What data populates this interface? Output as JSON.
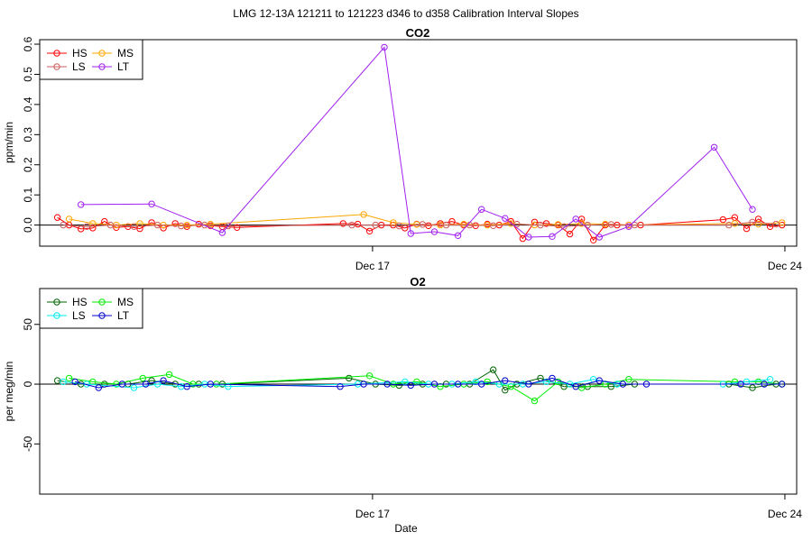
{
  "figure": {
    "title": "LMG   12-13A    121211 to 121223    d346 to d358   Calibration Interval Slopes",
    "xlabel": "Date"
  },
  "chart_data": [
    {
      "type": "scatter",
      "title": "CO2",
      "ylabel": "ppm/min",
      "xlabel": "",
      "x_unit": "day of December 2012",
      "xlim": [
        11.35,
        24.2
      ],
      "ylim": [
        -0.07,
        0.615
      ],
      "x_ticks": [
        {
          "x": 17,
          "label": "Dec 17"
        },
        {
          "x": 24,
          "label": "Dec 24"
        }
      ],
      "y_ticks": [
        0.0,
        0.1,
        0.2,
        0.3,
        0.4,
        0.5,
        0.6
      ],
      "y_tick_labels": [
        "0.0",
        "0.1",
        "0.2",
        "0.3",
        "0.4",
        "0.5",
        "0.6"
      ],
      "hline": 0,
      "grid": false,
      "legend": {
        "placement": "top-left",
        "columns": 2
      },
      "series": [
        {
          "name": "HS",
          "color": "#ff0000",
          "x": [
            11.65,
            11.85,
            12.05,
            12.25,
            12.45,
            12.65,
            12.85,
            13.05,
            13.25,
            13.45,
            13.65,
            13.85,
            14.05,
            14.25,
            14.45,
            14.7,
            16.5,
            16.75,
            16.95,
            17.15,
            17.35,
            17.55,
            17.75,
            17.95,
            18.15,
            18.35,
            18.55,
            18.75,
            18.95,
            19.15,
            19.35,
            19.55,
            19.75,
            19.95,
            20.15,
            20.35,
            20.55,
            20.75,
            20.95,
            21.15,
            21.35,
            21.55,
            22.95,
            23.15,
            23.35,
            23.55,
            23.75,
            23.95
          ],
          "y": [
            0.025,
            0.0,
            -0.013,
            -0.01,
            0.012,
            -0.008,
            -0.005,
            -0.012,
            0.008,
            -0.01,
            0.005,
            -0.005,
            0.003,
            -0.002,
            -0.005,
            -0.008,
            0.005,
            0.003,
            -0.02,
            0.0,
            0.0,
            -0.01,
            0.003,
            -0.002,
            0.005,
            0.012,
            0.0,
            -0.002,
            0.003,
            0.0,
            0.012,
            -0.045,
            0.01,
            0.005,
            0.0,
            -0.03,
            0.02,
            -0.05,
            0.0,
            0.0,
            0.0,
            0.0,
            0.018,
            0.025,
            -0.012,
            0.02,
            -0.005,
            0.0
          ]
        },
        {
          "name": "MS",
          "color": "#ffa500",
          "x": [
            11.85,
            12.25,
            12.65,
            13.05,
            13.45,
            13.85,
            14.25,
            16.85,
            17.35,
            17.75,
            18.15,
            18.55,
            18.95,
            19.35,
            19.75,
            20.15,
            20.55,
            20.95,
            21.35,
            23.15,
            23.55,
            23.95
          ],
          "y": [
            0.02,
            0.005,
            0.0,
            0.005,
            0.0,
            0.0,
            0.003,
            0.035,
            0.008,
            0.002,
            0.0,
            0.003,
            0.0,
            0.005,
            0.0,
            0.002,
            0.005,
            0.003,
            0.0,
            0.005,
            0.003,
            0.008
          ]
        },
        {
          "name": "LS",
          "color": "#cd5c5c",
          "x": [
            11.75,
            12.15,
            12.55,
            12.95,
            13.35,
            13.75,
            14.15,
            14.55,
            16.65,
            17.05,
            17.45,
            17.85,
            18.25,
            18.65,
            19.05,
            19.45,
            19.85,
            20.25,
            20.65,
            21.05,
            21.45,
            23.05,
            23.45,
            23.85
          ],
          "y": [
            0.0,
            -0.005,
            0.0,
            -0.005,
            0.0,
            -0.003,
            0.0,
            -0.003,
            0.0,
            0.0,
            -0.003,
            0.002,
            0.0,
            0.0,
            -0.002,
            0.003,
            0.0,
            -0.005,
            0.0,
            0.002,
            0.0,
            0.0,
            0.01,
            0.003
          ]
        },
        {
          "name": "LT",
          "color": "#a020f0",
          "x": [
            12.05,
            13.25,
            14.45,
            17.2,
            17.65,
            18.05,
            18.45,
            18.85,
            19.25,
            19.65,
            20.05,
            20.45,
            20.85,
            21.35,
            22.8,
            23.45
          ],
          "y": [
            0.068,
            0.07,
            -0.025,
            0.59,
            -0.028,
            -0.022,
            -0.035,
            0.052,
            0.022,
            -0.04,
            -0.038,
            0.02,
            -0.04,
            -0.005,
            0.258,
            0.052
          ]
        }
      ]
    },
    {
      "type": "scatter",
      "title": "O2",
      "ylabel": "per meg/min",
      "xlabel": "Date",
      "x_unit": "day of December 2012",
      "xlim": [
        11.35,
        24.2
      ],
      "ylim": [
        -92,
        80
      ],
      "x_ticks": [
        {
          "x": 17,
          "label": "Dec 17"
        },
        {
          "x": 24,
          "label": "Dec 24"
        }
      ],
      "y_ticks": [
        -50,
        0,
        50
      ],
      "y_tick_labels": [
        "-50",
        "0",
        "50"
      ],
      "hline": 0,
      "grid": false,
      "legend": {
        "placement": "top-left",
        "columns": 2
      },
      "series": [
        {
          "name": "HS",
          "color": "#006400",
          "x": [
            11.65,
            12.05,
            12.45,
            12.85,
            13.25,
            13.65,
            14.05,
            14.45,
            16.6,
            17.05,
            17.45,
            17.85,
            18.25,
            18.65,
            19.05,
            19.25,
            19.45,
            19.85,
            20.25,
            20.65,
            21.05,
            21.45,
            23.05,
            23.45,
            23.85
          ],
          "y": [
            3,
            0,
            0,
            0,
            3,
            0,
            0,
            0,
            5,
            0,
            -1,
            0,
            0,
            0,
            12,
            -5,
            0,
            5,
            -2,
            -2,
            -2,
            0,
            0,
            -3,
            0
          ]
        },
        {
          "name": "MS",
          "color": "#00ee00",
          "x": [
            11.85,
            12.25,
            12.65,
            13.1,
            13.55,
            13.95,
            14.35,
            16.95,
            17.35,
            17.75,
            18.15,
            18.55,
            18.95,
            19.35,
            19.75,
            20.15,
            20.55,
            20.95,
            21.35,
            23.15,
            23.55,
            23.95
          ],
          "y": [
            5,
            2,
            0,
            5,
            8,
            0,
            0,
            7,
            0,
            2,
            -2,
            0,
            2,
            -2,
            -14,
            2,
            -3,
            0,
            4,
            2,
            2,
            0
          ]
        },
        {
          "name": "LS",
          "color": "#00eeee",
          "x": [
            11.75,
            12.15,
            12.95,
            13.35,
            13.75,
            14.15,
            14.55,
            16.75,
            17.55,
            17.95,
            18.35,
            18.75,
            19.15,
            19.55,
            19.95,
            20.35,
            20.75,
            21.15,
            22.95,
            23.35,
            23.75
          ],
          "y": [
            2,
            0,
            -3,
            0,
            -2,
            0,
            -2,
            0,
            2,
            0,
            0,
            2,
            0,
            0,
            2,
            0,
            4,
            0,
            0,
            2,
            4
          ]
        },
        {
          "name": "LT",
          "color": "#0000cd",
          "x": [
            11.95,
            12.35,
            12.75,
            13.15,
            13.45,
            13.85,
            14.25,
            16.45,
            16.85,
            17.25,
            17.65,
            18.05,
            18.45,
            18.85,
            19.25,
            19.65,
            20.05,
            20.45,
            20.85,
            21.25,
            21.65,
            23.25,
            23.65,
            23.95
          ],
          "y": [
            2,
            -3,
            0,
            0,
            3,
            -2,
            0,
            -2,
            0,
            0,
            -1,
            0,
            0,
            0,
            3,
            0,
            5,
            -2,
            3,
            0,
            0,
            0,
            0,
            0
          ]
        }
      ]
    }
  ]
}
